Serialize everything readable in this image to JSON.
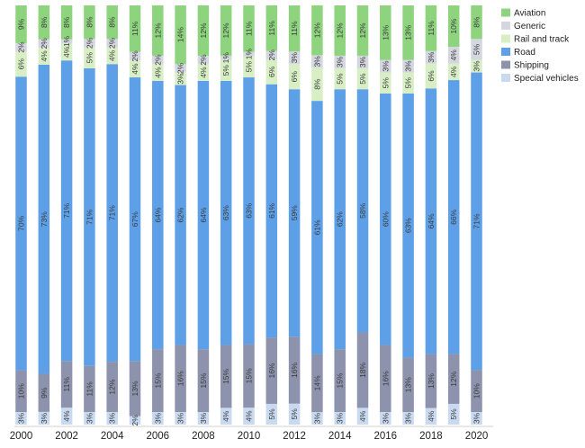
{
  "chart_data": {
    "type": "bar",
    "stacked": true,
    "normalized_percent": true,
    "title": "",
    "xlabel": "",
    "ylabel": "",
    "ylim": [
      0,
      100
    ],
    "legend_position": "top-right",
    "categories": [
      "2000",
      "2001",
      "2002",
      "2003",
      "2004",
      "2005",
      "2006",
      "2007",
      "2008",
      "2009",
      "2010",
      "2011",
      "2012",
      "2013",
      "2014",
      "2015",
      "2016",
      "2017",
      "2018",
      "2019",
      "2020"
    ],
    "x_tick_labels": [
      "2000",
      "2002",
      "2004",
      "2006",
      "2008",
      "2010",
      "2012",
      "2014",
      "2016",
      "2018",
      "2020"
    ],
    "series": [
      {
        "name": "Special vehicles",
        "color": "#c9daf0",
        "values": [
          3,
          3,
          4,
          3,
          3,
          2,
          3,
          3,
          3,
          4,
          4,
          5,
          5,
          3,
          3,
          4,
          3,
          3,
          4,
          5,
          3
        ]
      },
      {
        "name": "Shipping",
        "color": "#8e93ad",
        "values": [
          10,
          9,
          11,
          11,
          12,
          13,
          15,
          16,
          15,
          15,
          15,
          16,
          16,
          14,
          15,
          18,
          16,
          13,
          13,
          12,
          10
        ]
      },
      {
        "name": "Road",
        "color": "#5ea0e8",
        "values": [
          70,
          73,
          71,
          71,
          71,
          67,
          64,
          62,
          64,
          63,
          63,
          61,
          59,
          61,
          62,
          58,
          60,
          63,
          64,
          66,
          71
        ]
      },
      {
        "name": "Rail and track",
        "color": "#d8efc6",
        "values": [
          6,
          4,
          4,
          5,
          4,
          4,
          4,
          3,
          4,
          5,
          5,
          6,
          6,
          8,
          5,
          5,
          5,
          5,
          6,
          4,
          3
        ]
      },
      {
        "name": "Generic",
        "color": "#d4d6e0",
        "values": [
          2,
          2,
          1,
          2,
          2,
          2,
          2,
          2,
          2,
          1,
          1,
          2,
          3,
          3,
          3,
          3,
          3,
          3,
          3,
          4,
          5
        ]
      },
      {
        "name": "Aviation",
        "color": "#8ed47e",
        "values": [
          9,
          8,
          8,
          8,
          8,
          11,
          12,
          14,
          12,
          12,
          11,
          11,
          11,
          12,
          12,
          12,
          13,
          13,
          11,
          10,
          8
        ]
      }
    ],
    "legend_order": [
      "Aviation",
      "Generic",
      "Rail and track",
      "Road",
      "Shipping",
      "Special vehicles"
    ]
  }
}
